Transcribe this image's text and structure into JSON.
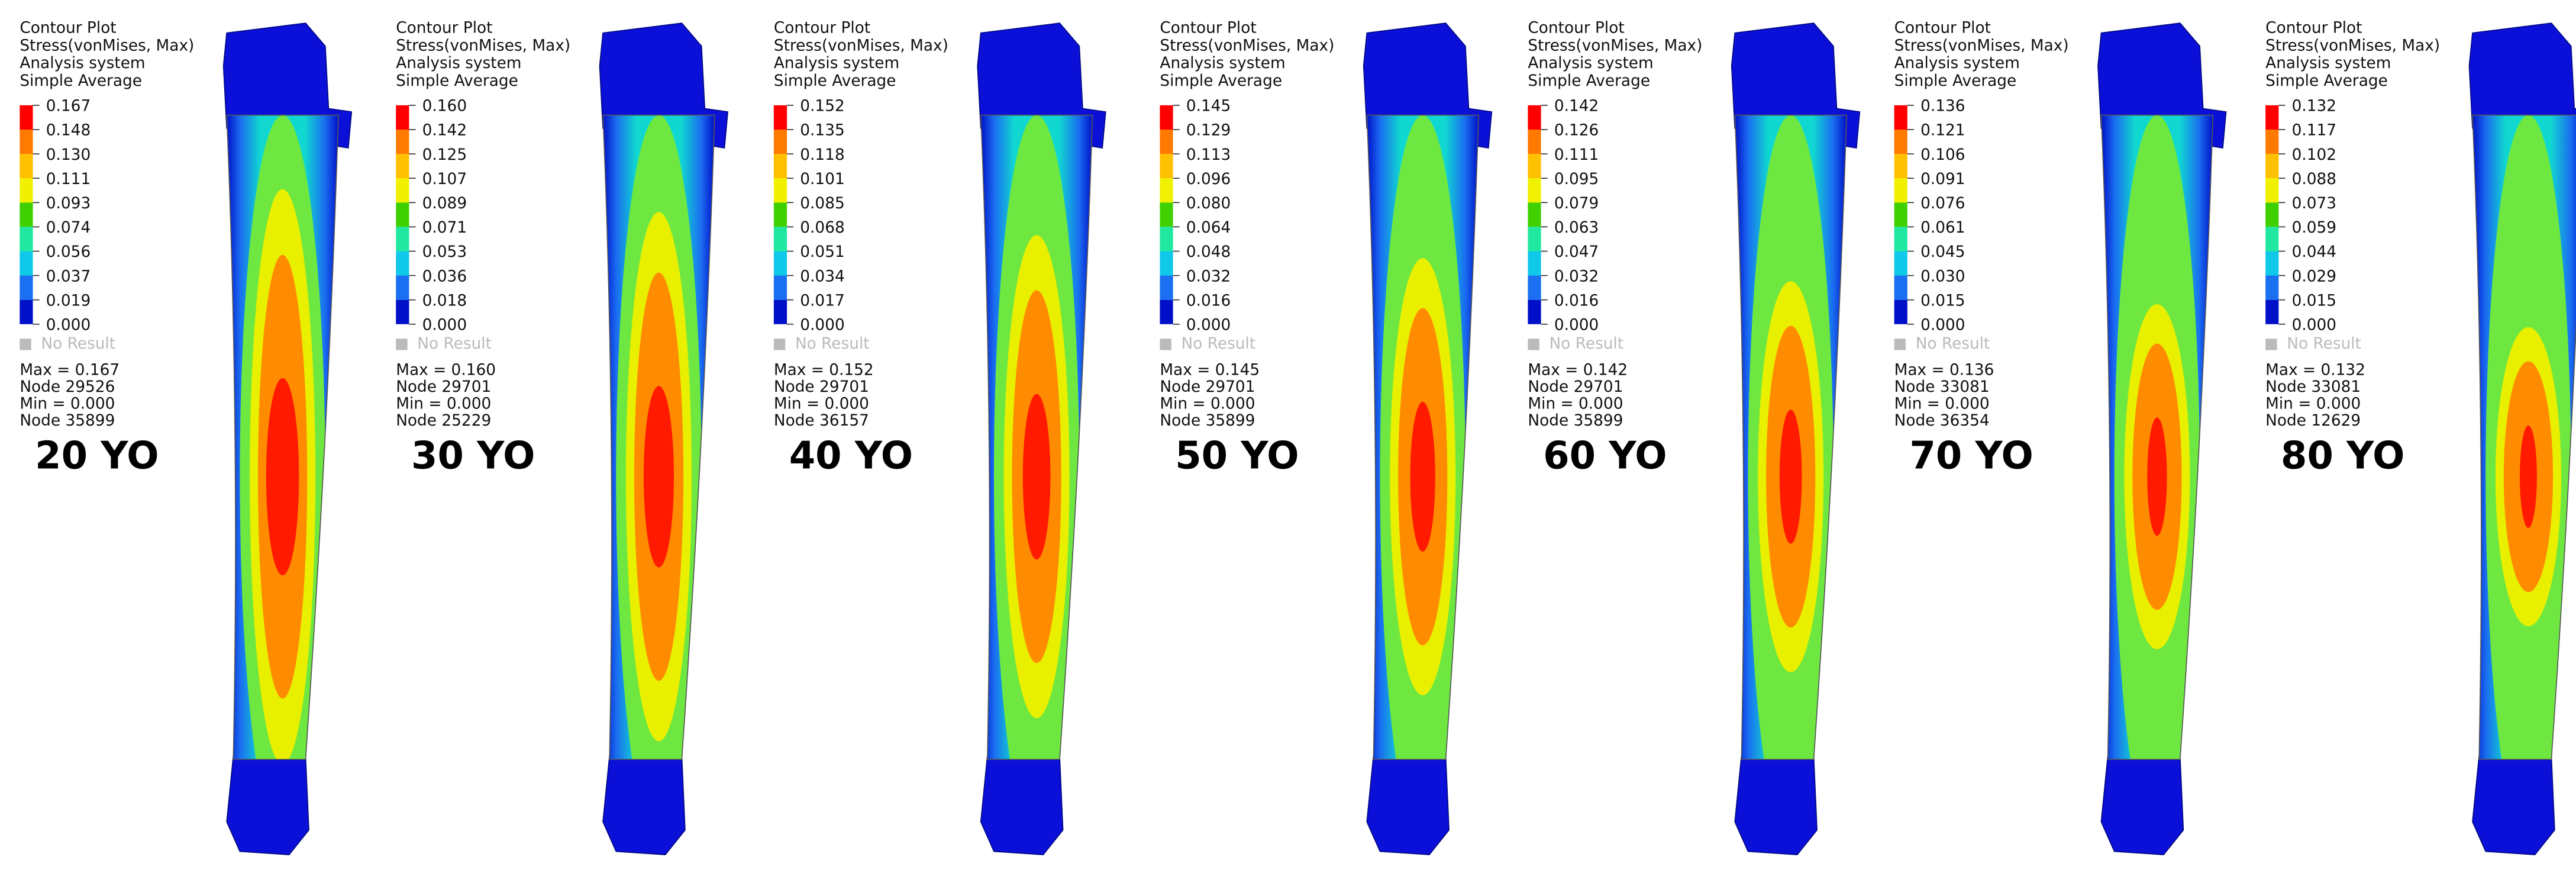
{
  "panels": [
    {
      "header": [
        "Contour Plot",
        "Stress(vonMises, Max)",
        "Analysis system",
        "Simple Average"
      ],
      "legend": [
        "0.167",
        "0.148",
        "0.130",
        "0.111",
        "0.093",
        "0.074",
        "0.056",
        "0.037",
        "0.019",
        "0.000"
      ],
      "no_result": "No Result",
      "summary": [
        "Max = 0.167",
        "Node 29526",
        "Min = 0.000",
        "Node 35899"
      ],
      "age": "20 YO"
    },
    {
      "header": [
        "Contour Plot",
        "Stress(vonMises, Max)",
        "Analysis system",
        "Simple Average"
      ],
      "legend": [
        "0.160",
        "0.142",
        "0.125",
        "0.107",
        "0.089",
        "0.071",
        "0.053",
        "0.036",
        "0.018",
        "0.000"
      ],
      "no_result": "No Result",
      "summary": [
        "Max = 0.160",
        "Node 29701",
        "Min = 0.000",
        "Node 25229"
      ],
      "age": "30 YO"
    },
    {
      "header": [
        "Contour Plot",
        "Stress(vonMises, Max)",
        "Analysis system",
        "Simple Average"
      ],
      "legend": [
        "0.152",
        "0.135",
        "0.118",
        "0.101",
        "0.085",
        "0.068",
        "0.051",
        "0.034",
        "0.017",
        "0.000"
      ],
      "no_result": "No Result",
      "summary": [
        "Max = 0.152",
        "Node 29701",
        "Min = 0.000",
        "Node 36157"
      ],
      "age": "40 YO"
    },
    {
      "header": [
        "Contour Plot",
        "Stress(vonMises, Max)",
        "Analysis system",
        "Simple Average"
      ],
      "legend": [
        "0.145",
        "0.129",
        "0.113",
        "0.096",
        "0.080",
        "0.064",
        "0.048",
        "0.032",
        "0.016",
        "0.000"
      ],
      "no_result": "No Result",
      "summary": [
        "Max = 0.145",
        "Node 29701",
        "Min = 0.000",
        "Node 35899"
      ],
      "age": "50 YO"
    },
    {
      "header": [
        "Contour Plot",
        "Stress(vonMises, Max)",
        "Analysis system",
        "Simple Average"
      ],
      "legend": [
        "0.142",
        "0.126",
        "0.111",
        "0.095",
        "0.079",
        "0.063",
        "0.047",
        "0.032",
        "0.016",
        "0.000"
      ],
      "no_result": "No Result",
      "summary": [
        "Max = 0.142",
        "Node 29701",
        "Min = 0.000",
        "Node 35899"
      ],
      "age": "60 YO"
    },
    {
      "header": [
        "Contour Plot",
        "Stress(vonMises, Max)",
        "Analysis system",
        "Simple Average"
      ],
      "legend": [
        "0.136",
        "0.121",
        "0.106",
        "0.091",
        "0.076",
        "0.061",
        "0.045",
        "0.030",
        "0.015",
        "0.000"
      ],
      "no_result": "No Result",
      "summary": [
        "Max = 0.136",
        "Node 33081",
        "Min = 0.000",
        "Node 36354"
      ],
      "age": "70 YO"
    },
    {
      "header": [
        "Contour Plot",
        "Stress(vonMises, Max)",
        "Analysis system",
        "Simple Average"
      ],
      "legend": [
        "0.132",
        "0.117",
        "0.102",
        "0.088",
        "0.073",
        "0.059",
        "0.044",
        "0.029",
        "0.015",
        "0.000"
      ],
      "no_result": "No Result",
      "summary": [
        "Max = 0.132",
        "Node 33081",
        "Min = 0.000",
        "Node 12629"
      ],
      "age": "80 YO"
    }
  ]
}
